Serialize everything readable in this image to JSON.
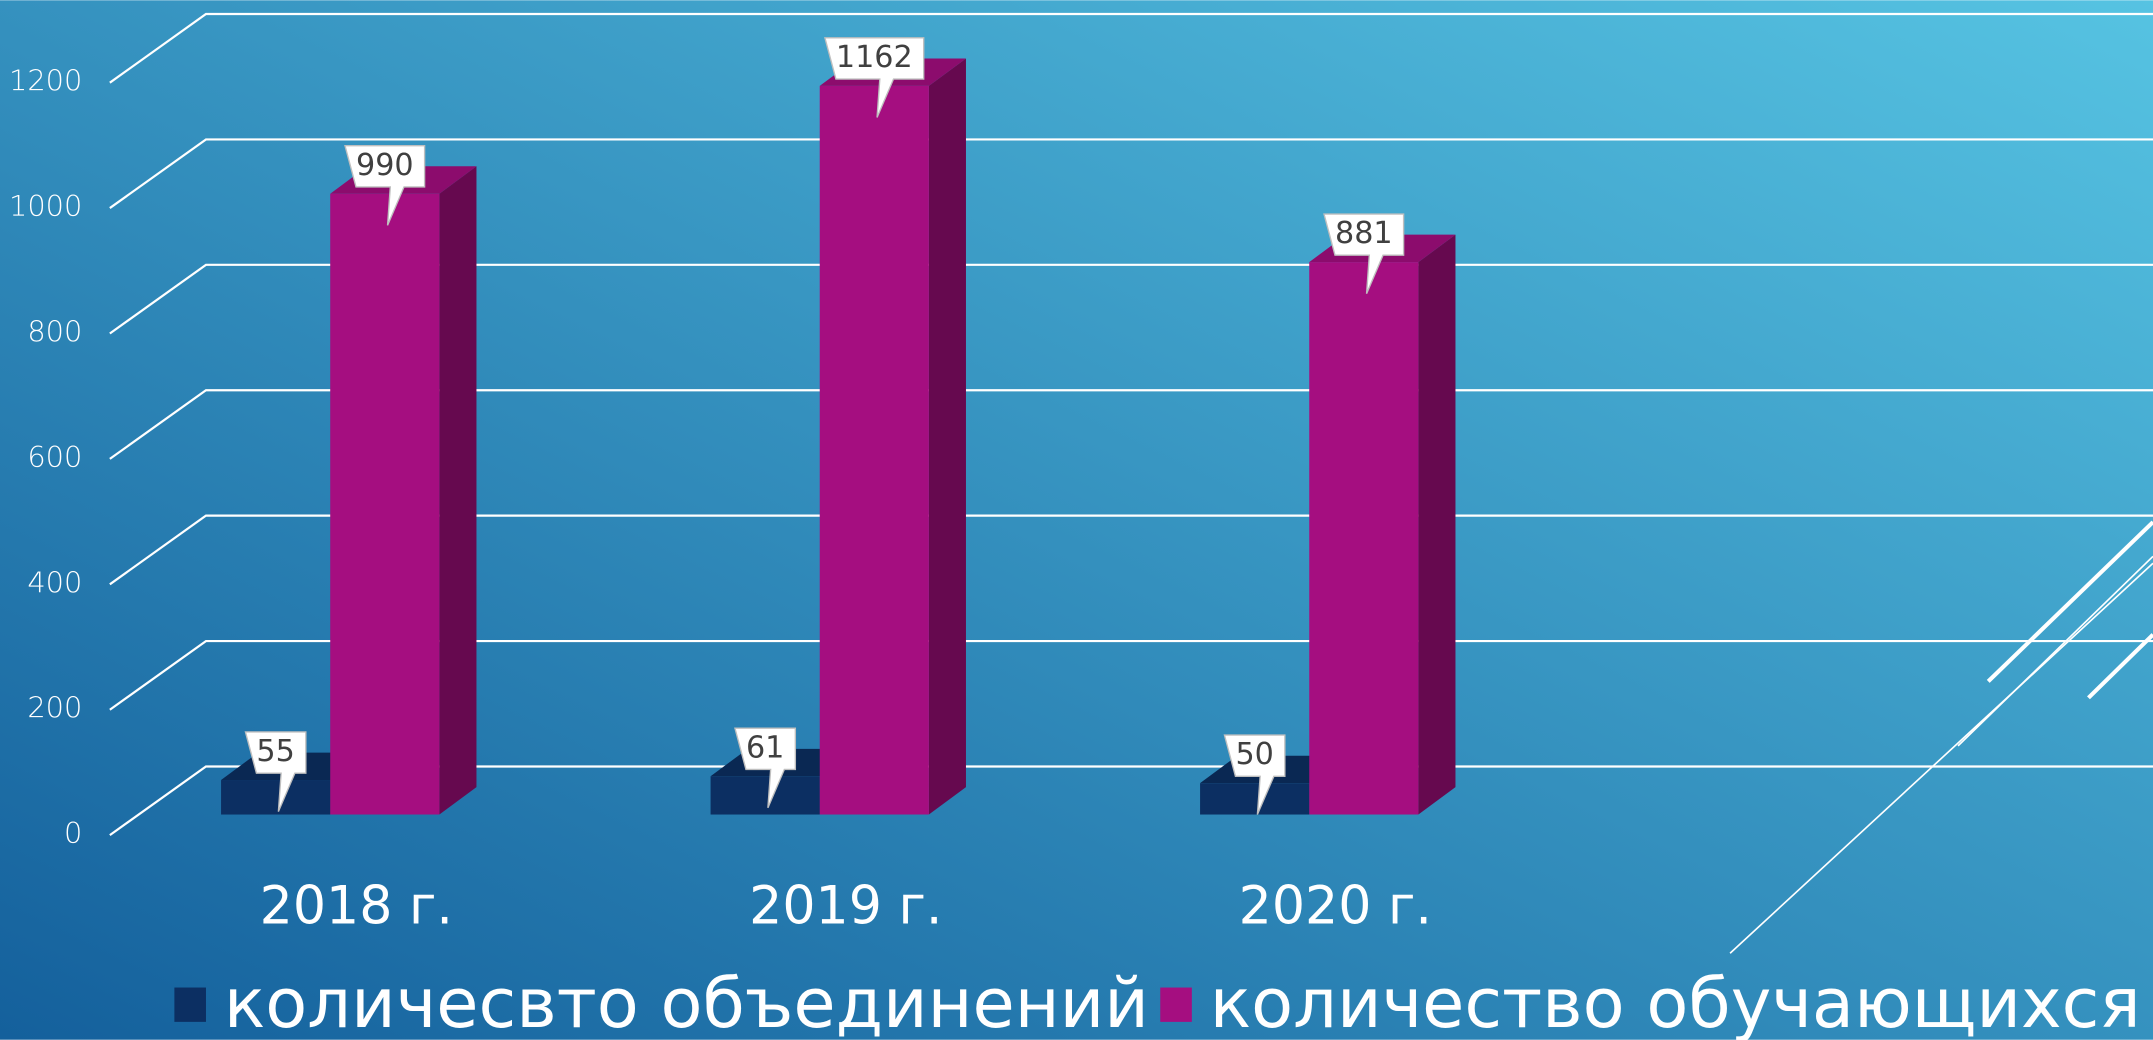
{
  "chart_data": {
    "type": "bar3d",
    "categories": [
      "2018 г.",
      "2019 г.",
      "2020 г."
    ],
    "series": [
      {
        "name": "количесвто объединений",
        "color": "#0c2f62",
        "values": [
          55,
          61,
          50
        ]
      },
      {
        "name": "количество обучающихся",
        "color": "#a50e80",
        "values": [
          990,
          1162,
          881
        ]
      }
    ],
    "ylim": [
      0,
      1200
    ],
    "yticks": [
      0,
      200,
      400,
      600,
      800,
      1000,
      1200
    ],
    "grid": true,
    "legend": "bottom"
  }
}
